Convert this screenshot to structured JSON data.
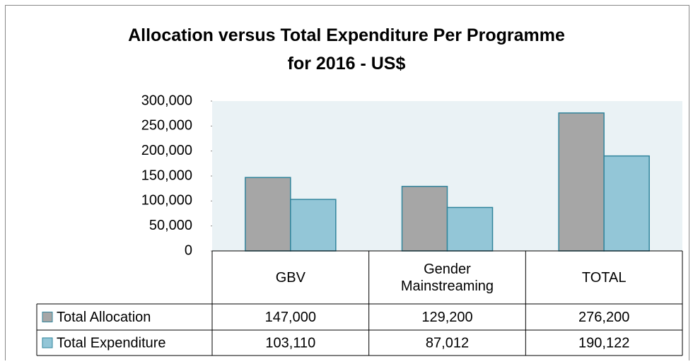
{
  "chart_data": {
    "type": "bar",
    "title": "Allocation versus Total Expenditure Per Programme for 2016 - US$",
    "categories": [
      "GBV",
      "Gender Mainstreaming",
      "TOTAL"
    ],
    "series": [
      {
        "name": "Total Allocation",
        "color": "#a6a6a6",
        "values": [
          147000,
          129200,
          276200
        ],
        "value_labels": [
          "147,000",
          "129,200",
          "276,200"
        ]
      },
      {
        "name": "Total Expenditure",
        "color": "#93c6d7",
        "values": [
          103110,
          87012,
          190122
        ],
        "value_labels": [
          "103,110",
          "87,012",
          "190,122"
        ]
      }
    ],
    "ylim": [
      0,
      300000
    ],
    "yticks": [
      0,
      {
        "value": 50000,
        "label": "50,000"
      },
      {
        "value": 100000,
        "label": "100,000"
      },
      {
        "value": 150000,
        "label": "150,000"
      },
      {
        "value": 200000,
        "label": "200,000"
      },
      {
        "value": 250000,
        "label": "250,000"
      },
      {
        "value": 300000,
        "label": "300,000"
      }
    ],
    "grid": false
  }
}
